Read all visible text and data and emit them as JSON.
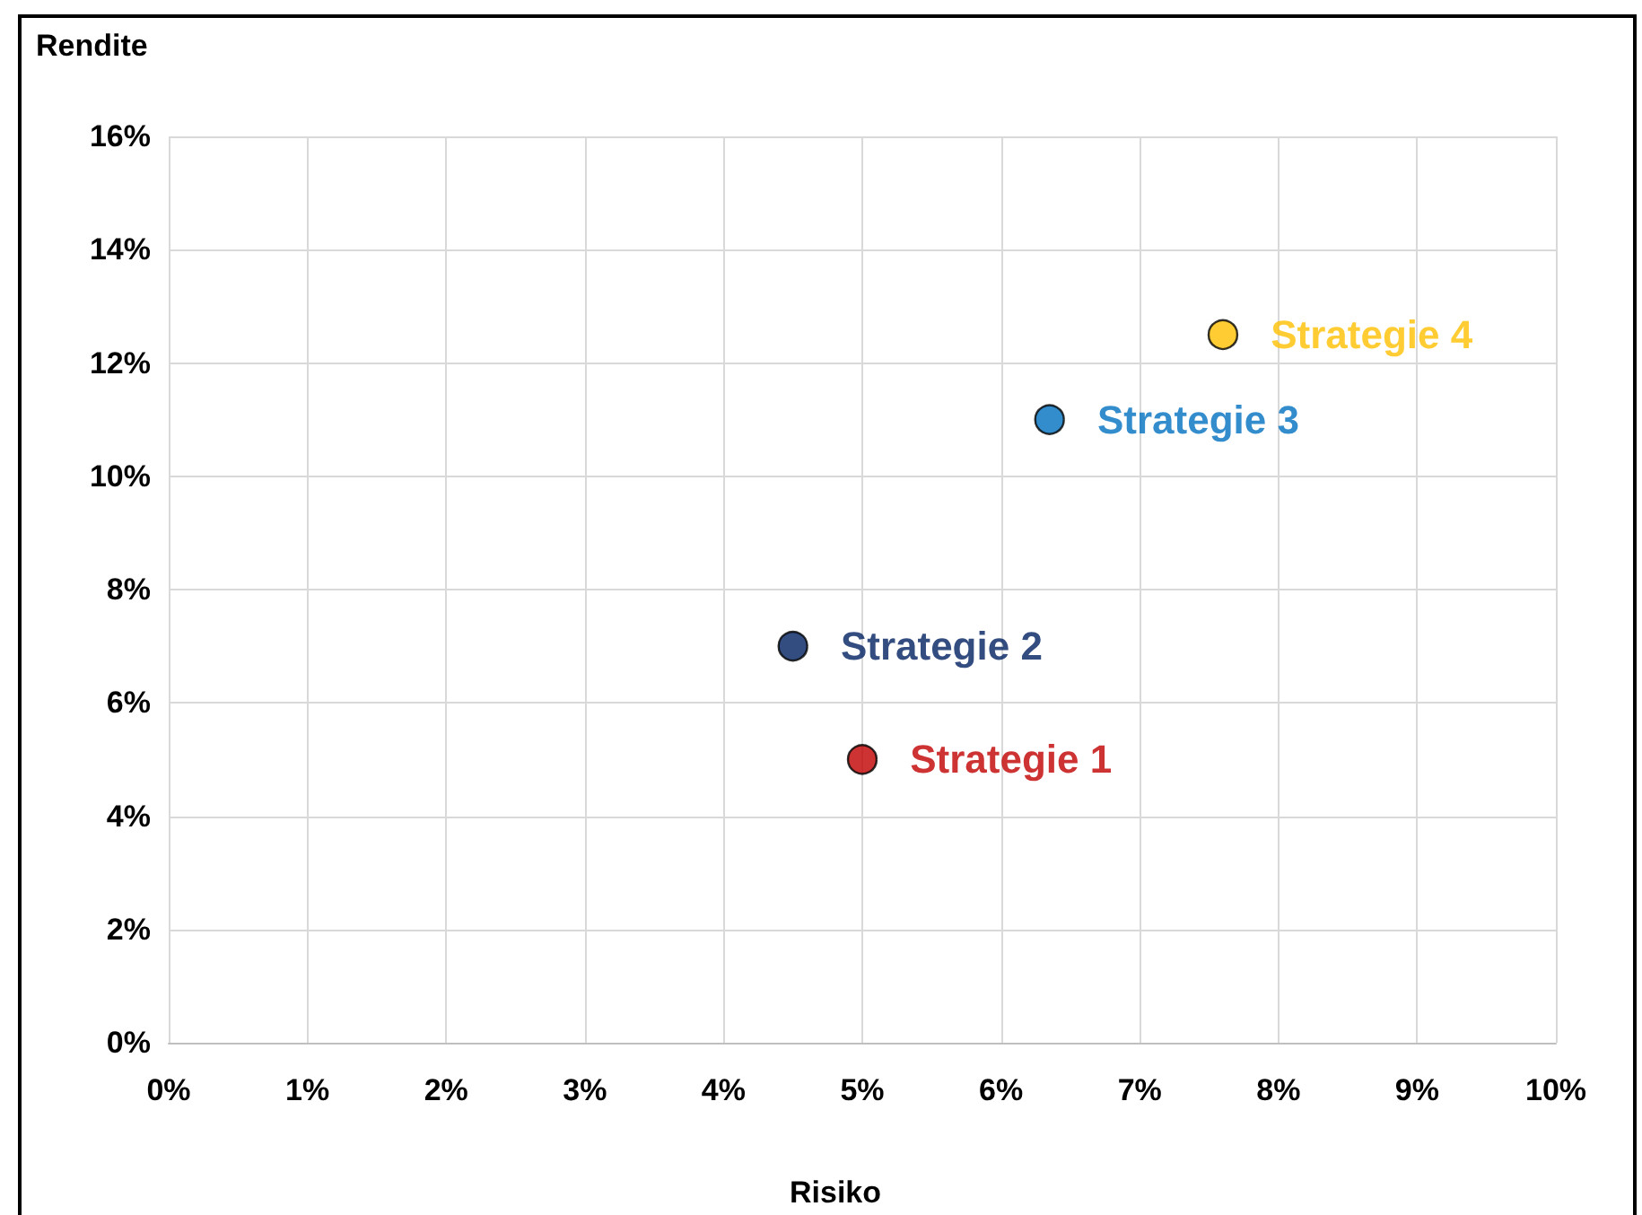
{
  "chart_data": {
    "type": "scatter",
    "xlabel": "Risiko",
    "ylabel": "Rendite",
    "series": [
      {
        "name": "Strategie 1",
        "color": "#c00000",
        "x": [
          5.0
        ],
        "values": [
          5.0
        ]
      },
      {
        "name": "Strategie 2",
        "color": "#002060",
        "x": [
          4.5
        ],
        "values": [
          7.0
        ]
      },
      {
        "name": "Strategie 3",
        "color": "#0070c0",
        "x": [
          6.35
        ],
        "values": [
          11.0
        ]
      },
      {
        "name": "Strategie 4",
        "color": "#ffc000",
        "x": [
          7.6
        ],
        "values": [
          12.5
        ]
      }
    ],
    "xlim": [
      0,
      10
    ],
    "xticks": [
      {
        "value": 0,
        "label": "0%"
      },
      {
        "value": 1,
        "label": "1%"
      },
      {
        "value": 2,
        "label": "2%"
      },
      {
        "value": 3,
        "label": "3%"
      },
      {
        "value": 4,
        "label": "4%"
      },
      {
        "value": 5,
        "label": "5%"
      },
      {
        "value": 6,
        "label": "6%"
      },
      {
        "value": 7,
        "label": "7%"
      },
      {
        "value": 8,
        "label": "8%"
      },
      {
        "value": 9,
        "label": "9%"
      },
      {
        "value": 10,
        "label": "10%"
      }
    ],
    "ylim": [
      0,
      16
    ],
    "yticks": [
      {
        "value": 0,
        "label": "0%"
      },
      {
        "value": 2,
        "label": "2%"
      },
      {
        "value": 4,
        "label": "4%"
      },
      {
        "value": 6,
        "label": "6%"
      },
      {
        "value": 8,
        "label": "8%"
      },
      {
        "value": 10,
        "label": "10%"
      },
      {
        "value": 12,
        "label": "12%"
      },
      {
        "value": 14,
        "label": "14%"
      },
      {
        "value": 16,
        "label": "16%"
      }
    ],
    "grid": true,
    "legend": false,
    "marker": "circle"
  }
}
